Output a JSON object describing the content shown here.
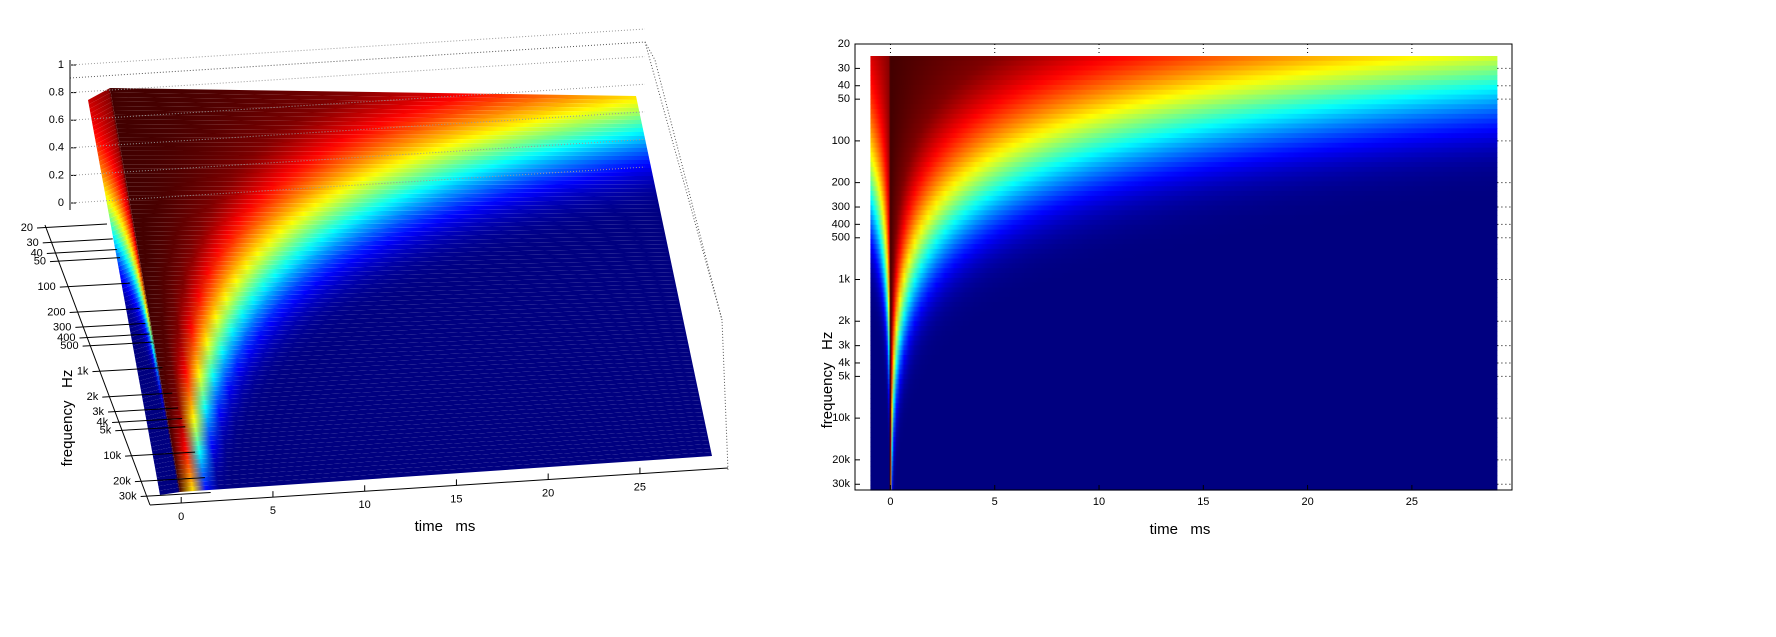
{
  "chart_data": [
    {
      "type": "surface",
      "xlabel": "time   ms",
      "ylabel": "frequency   Hz",
      "xlim": [
        -1.7,
        29.8
      ],
      "xticks": [
        0,
        5,
        10,
        15,
        20,
        25
      ],
      "ylim": [
        20,
        33000
      ],
      "yscale": "log",
      "yticks": [
        20,
        30,
        40,
        50,
        100,
        200,
        300,
        400,
        500,
        {
          "value": 1000,
          "label": "1k"
        },
        {
          "value": 2000,
          "label": "2k"
        },
        {
          "value": 3000,
          "label": "3k"
        },
        {
          "value": 4000,
          "label": "4k"
        },
        {
          "value": 5000,
          "label": "5k"
        },
        {
          "value": 10000,
          "label": "10k"
        },
        {
          "value": 20000,
          "label": "20k"
        },
        {
          "value": 30000,
          "label": "30k"
        }
      ],
      "zlim": [
        0,
        1
      ],
      "zticks": [
        0,
        0.2,
        0.4,
        0.6,
        0.8,
        1
      ],
      "colormap": "jet",
      "grid": true
    },
    {
      "type": "image",
      "xlabel": "time   ms",
      "ylabel": "frequency   Hz",
      "xlim": [
        -1.7,
        29.8
      ],
      "xticks": [
        0,
        5,
        10,
        15,
        20,
        25
      ],
      "ylim": [
        20,
        33000
      ],
      "yscale": "log",
      "yticks": [
        20,
        30,
        40,
        50,
        100,
        200,
        300,
        400,
        500,
        {
          "value": 1000,
          "label": "1k"
        },
        {
          "value": 2000,
          "label": "2k"
        },
        {
          "value": 3000,
          "label": "3k"
        },
        {
          "value": 4000,
          "label": "4k"
        },
        {
          "value": 5000,
          "label": "5k"
        },
        {
          "value": 10000,
          "label": "10k"
        },
        {
          "value": 20000,
          "label": "20k"
        },
        {
          "value": 30000,
          "label": "30k"
        }
      ],
      "colormap": "jet",
      "grid": true
    }
  ]
}
